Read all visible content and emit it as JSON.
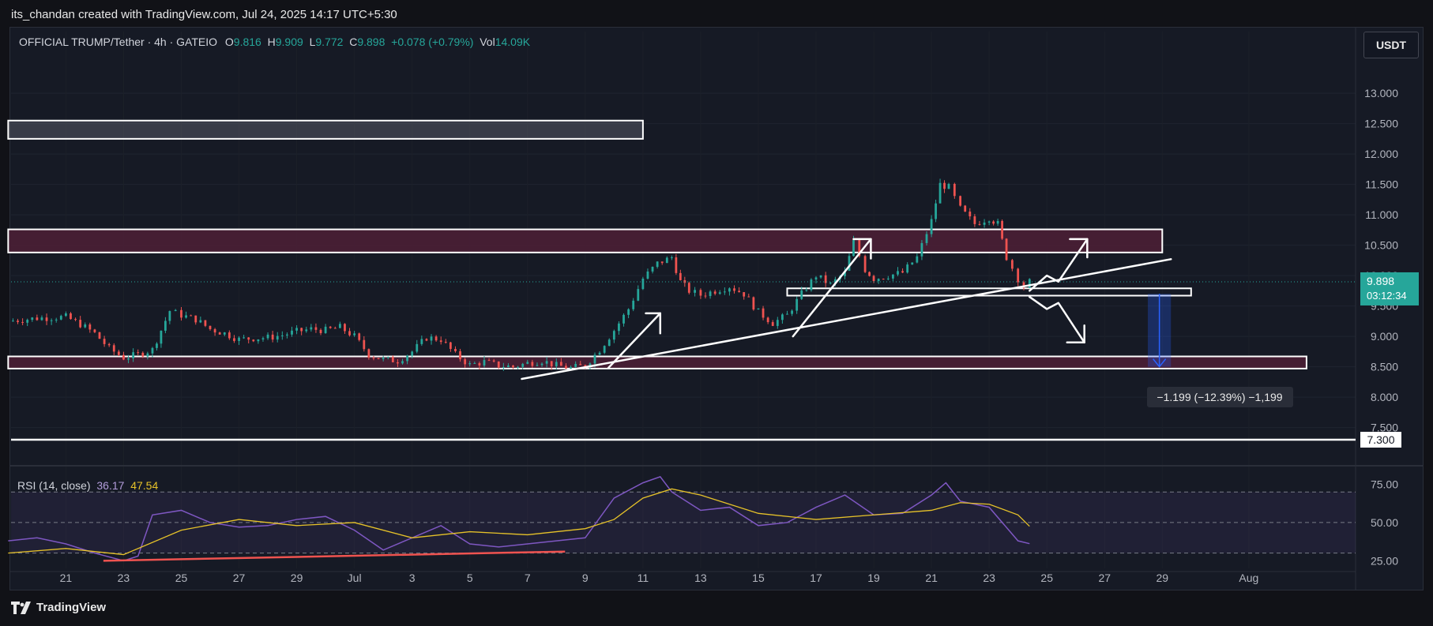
{
  "header": {
    "attribution": "its_chandan created with TradingView.com, Jul 24, 2025 14:17 UTC+5:30"
  },
  "legend": {
    "symbol": "OFFICIAL TRUMP/Tether · 4h · GATEIO",
    "o_label": "O",
    "o_value": "9.816",
    "h_label": "H",
    "h_value": "9.909",
    "l_label": "L",
    "l_value": "9.772",
    "c_label": "C",
    "c_value": "9.898",
    "change": "+0.078 (+0.79%)",
    "vol_label": "Vol",
    "vol_value": "14.09K"
  },
  "currency_button": "USDT",
  "rsi_legend": {
    "label": "RSI (14, close)",
    "rsi": "36.17",
    "ma": "47.54"
  },
  "footer": {
    "brand": "TradingView"
  },
  "colors": {
    "up": "#26a69a",
    "down": "#ef5350",
    "rsi": "#7e57c2",
    "rsi_ma": "#e6c229",
    "zone": "#4a1f35",
    "measure": "#2962ff"
  },
  "chart_data": [
    {
      "type": "candlestick",
      "y_axis": {
        "min": 7.3,
        "max": 13.3,
        "ticks": [
          "13.000",
          "12.500",
          "12.000",
          "11.500",
          "11.000",
          "10.500",
          "10.000",
          "9.500",
          "9.000",
          "8.500",
          "8.000",
          "7.500"
        ]
      },
      "x_axis": {
        "ticks": [
          "21",
          "23",
          "25",
          "27",
          "29",
          "Jul",
          "3",
          "5",
          "7",
          "9",
          "11",
          "13",
          "15",
          "17",
          "19",
          "21",
          "23",
          "25",
          "27",
          "29",
          "Aug"
        ]
      },
      "current_price": {
        "value": "9.898",
        "countdown": "03:12:34"
      },
      "horizontal_line": {
        "price": 7.3,
        "label": "7.300"
      },
      "zones": [
        {
          "from": 12.25,
          "to": 12.55,
          "x_start": "Jun 19",
          "x_end": "Jul 11",
          "style": "gray"
        },
        {
          "from": 10.38,
          "to": 10.76,
          "x_start": "Jun 19",
          "x_end": "Jul 29",
          "style": "maroon"
        },
        {
          "from": 8.47,
          "to": 8.67,
          "x_start": "Jun 19",
          "x_end": "Aug 3",
          "style": "maroon"
        },
        {
          "from": 9.67,
          "to": 9.79,
          "x_start": "Jul 16",
          "x_end": "Jul 30",
          "style": "outline"
        }
      ],
      "measure": {
        "label": "−1.199 (−12.39%) −1,199",
        "from": 9.7,
        "to": 8.5
      },
      "close_path": [
        [
          "Jun 19",
          9.25
        ],
        [
          "Jun 20",
          9.3
        ],
        [
          "Jun 21",
          9.32
        ],
        [
          "Jun 21.5",
          9.2
        ],
        [
          "Jun 22",
          9.05
        ],
        [
          "Jun 22.5",
          8.8
        ],
        [
          "Jun 23",
          8.65
        ],
        [
          "Jun 23.5",
          8.7
        ],
        [
          "Jun 24",
          8.78
        ],
        [
          "Jun 24.3",
          9.1
        ],
        [
          "Jun 24.6",
          9.42
        ],
        [
          "Jun 25",
          9.35
        ],
        [
          "Jun 25.5",
          9.28
        ],
        [
          "Jun 26",
          9.12
        ],
        [
          "Jun 26.5",
          9.05
        ],
        [
          "Jun 27",
          8.95
        ],
        [
          "Jun 27.5",
          8.97
        ],
        [
          "Jun 28",
          8.98
        ],
        [
          "Jun 28.5",
          9.02
        ],
        [
          "Jun 29",
          9.08
        ],
        [
          "Jun 29.5",
          9.12
        ],
        [
          "Jun 30",
          9.1
        ],
        [
          "Jun 30.5",
          9.15
        ],
        [
          "Jul 1",
          9.0
        ],
        [
          "Jul 1.5",
          8.7
        ],
        [
          "Jul 2",
          8.62
        ],
        [
          "Jul 2.5",
          8.6
        ],
        [
          "Jul 3",
          8.75
        ],
        [
          "Jul 3.5",
          8.98
        ],
        [
          "Jul 4",
          8.95
        ],
        [
          "Jul 4.5",
          8.7
        ],
        [
          "Jul 5",
          8.53
        ],
        [
          "Jul 5.5",
          8.58
        ],
        [
          "Jul 6",
          8.52
        ],
        [
          "Jul 6.5",
          8.5
        ],
        [
          "Jul 7",
          8.56
        ],
        [
          "Jul 7.5",
          8.6
        ],
        [
          "Jul 8",
          8.52
        ],
        [
          "Jul 8.5",
          8.48
        ],
        [
          "Jul 9",
          8.52
        ],
        [
          "Jul 9.5",
          8.78
        ],
        [
          "Jul 10",
          9.1
        ],
        [
          "Jul 10.5",
          9.45
        ],
        [
          "Jul 11",
          9.95
        ],
        [
          "Jul 11.5",
          10.2
        ],
        [
          "Jul 12",
          10.3
        ],
        [
          "Jul 12.3",
          9.9
        ],
        [
          "Jul 12.6",
          9.75
        ],
        [
          "Jul 13",
          9.68
        ],
        [
          "Jul 13.5",
          9.75
        ],
        [
          "Jul 14",
          9.82
        ],
        [
          "Jul 14.5",
          9.7
        ],
        [
          "Jul 15",
          9.4
        ],
        [
          "Jul 15.5",
          9.22
        ],
        [
          "Jul 16",
          9.35
        ],
        [
          "Jul 16.5",
          9.7
        ],
        [
          "Jul 17",
          10.0
        ],
        [
          "Jul 17.5",
          9.85
        ],
        [
          "Jul 18",
          10.05
        ],
        [
          "Jul 18.3",
          10.55
        ],
        [
          "Jul 18.7",
          10.1
        ],
        [
          "Jul 19",
          9.95
        ],
        [
          "Jul 19.5",
          10.0
        ],
        [
          "Jul 20",
          10.05
        ],
        [
          "Jul 20.5",
          10.3
        ],
        [
          "Jul 21",
          10.9
        ],
        [
          "Jul 21.3",
          11.5
        ],
        [
          "Jul 21.6",
          11.45
        ],
        [
          "Jul 22",
          11.1
        ],
        [
          "Jul 22.5",
          10.85
        ],
        [
          "Jul 23",
          10.95
        ],
        [
          "Jul 23.3",
          10.85
        ],
        [
          "Jul 23.6",
          10.3
        ],
        [
          "Jul 24",
          9.95
        ],
        [
          "Jul 24.2",
          9.82
        ],
        [
          "Jul 24.4",
          9.898
        ]
      ]
    },
    {
      "type": "line",
      "title": "RSI (14, close)",
      "y_axis": {
        "min": 20,
        "max": 82,
        "ticks": [
          "75.00",
          "50.00",
          "25.00"
        ]
      },
      "bands": {
        "upper": 70,
        "middle": 50,
        "lower": 30
      },
      "series": [
        {
          "name": "RSI",
          "values": [
            [
              "Jun 19",
              38
            ],
            [
              "Jun 20",
              40
            ],
            [
              "Jun 21",
              36
            ],
            [
              "Jun 22",
              30
            ],
            [
              "Jun 23",
              25
            ],
            [
              "Jun 23.5",
              28
            ],
            [
              "Jun 24",
              55
            ],
            [
              "Jun 25",
              58
            ],
            [
              "Jun 26",
              50
            ],
            [
              "Jun 27",
              47
            ],
            [
              "Jun 28",
              48
            ],
            [
              "Jun 29",
              52
            ],
            [
              "Jun 30",
              54
            ],
            [
              "Jul 1",
              45
            ],
            [
              "Jul 2",
              32
            ],
            [
              "Jul 3",
              40
            ],
            [
              "Jul 4",
              48
            ],
            [
              "Jul 5",
              36
            ],
            [
              "Jul 6",
              34
            ],
            [
              "Jul 7",
              36
            ],
            [
              "Jul 8",
              38
            ],
            [
              "Jul 9",
              40
            ],
            [
              "Jul 10",
              66
            ],
            [
              "Jul 11",
              76
            ],
            [
              "Jul 11.6",
              80
            ],
            [
              "Jul 12",
              70
            ],
            [
              "Jul 13",
              58
            ],
            [
              "Jul 14",
              60
            ],
            [
              "Jul 15",
              48
            ],
            [
              "Jul 16",
              50
            ],
            [
              "Jul 17",
              60
            ],
            [
              "Jul 18",
              68
            ],
            [
              "Jul 19",
              55
            ],
            [
              "Jul 20",
              56
            ],
            [
              "Jul 21",
              68
            ],
            [
              "Jul 21.5",
              76
            ],
            [
              "Jul 22",
              64
            ],
            [
              "Jul 23",
              60
            ],
            [
              "Jul 24",
              38
            ],
            [
              "Jul 24.4",
              36.17
            ]
          ]
        },
        {
          "name": "MA",
          "values": [
            [
              "Jun 19",
              30
            ],
            [
              "Jun 21",
              33
            ],
            [
              "Jun 23",
              29
            ],
            [
              "Jun 25",
              45
            ],
            [
              "Jun 27",
              52
            ],
            [
              "Jun 29",
              48
            ],
            [
              "Jul 1",
              50
            ],
            [
              "Jul 3",
              40
            ],
            [
              "Jul 5",
              44
            ],
            [
              "Jul 7",
              42
            ],
            [
              "Jul 9",
              46
            ],
            [
              "Jul 10",
              52
            ],
            [
              "Jul 11",
              66
            ],
            [
              "Jul 12",
              72
            ],
            [
              "Jul 13",
              68
            ],
            [
              "Jul 15",
              56
            ],
            [
              "Jul 17",
              52
            ],
            [
              "Jul 19",
              55
            ],
            [
              "Jul 21",
              58
            ],
            [
              "Jul 22",
              63
            ],
            [
              "Jul 23",
              62
            ],
            [
              "Jul 24",
              55
            ],
            [
              "Jul 24.4",
              47.54
            ]
          ]
        }
      ]
    }
  ]
}
